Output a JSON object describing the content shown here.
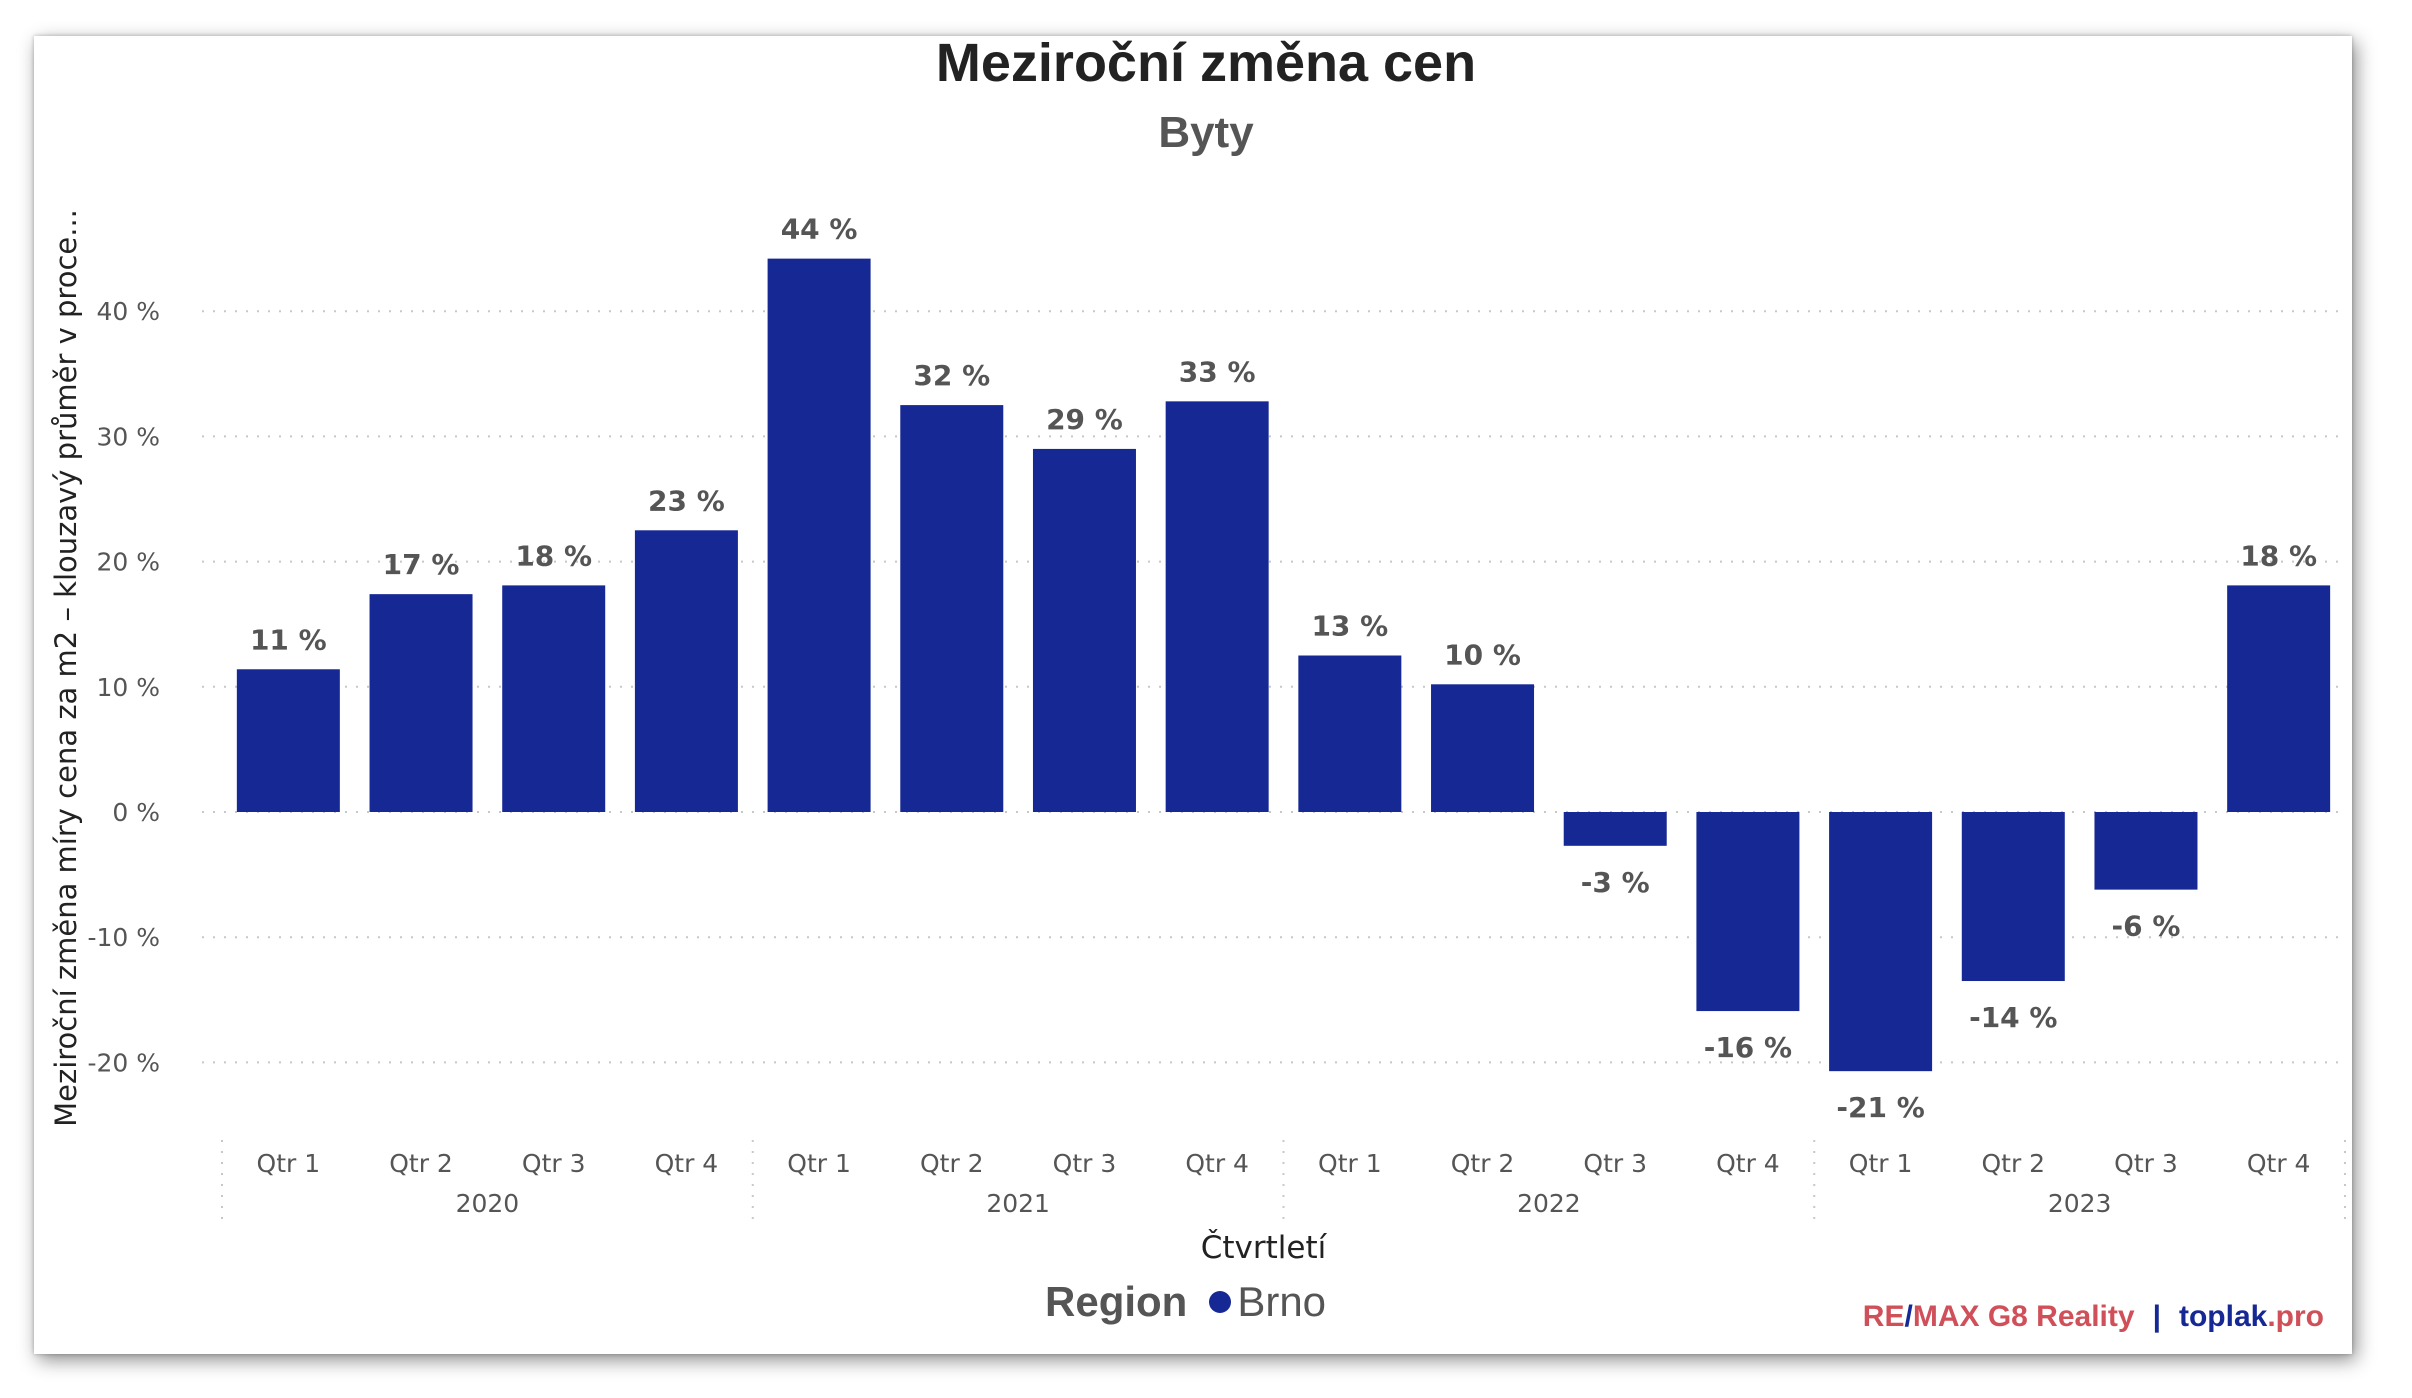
{
  "title": "Meziroční změna cen",
  "subtitle": "Byty",
  "colors": {
    "bar": "#162894",
    "text": "#555555",
    "title": "#222222",
    "credit_red": "#d0505a",
    "credit_blue": "#162894"
  },
  "legend": {
    "title": "Region",
    "items": [
      "Brno"
    ]
  },
  "credit": {
    "remax": "RE",
    "slash": "/",
    "remax2": "MAX G8 Reality",
    "sep": "|",
    "site1": "toplak",
    "site2": ".pro"
  },
  "chart_data": {
    "type": "bar",
    "title": "Meziroční změna cen",
    "subtitle": "Byty",
    "ylabel": "Meziroční změna míry cena za m2 – klouzavý průměr v proce...",
    "xlabel": "Čtvrtletí",
    "ylim": [
      -25,
      48
    ],
    "yticks": [
      -20,
      -10,
      0,
      10,
      20,
      30,
      40
    ],
    "ytick_labels": [
      "-20 %",
      "-10 %",
      "0 %",
      "10 %",
      "20 %",
      "30 %",
      "40 %"
    ],
    "categories": [
      "Qtr 1",
      "Qtr 2",
      "Qtr 3",
      "Qtr 4",
      "Qtr 1",
      "Qtr 2",
      "Qtr 3",
      "Qtr 4",
      "Qtr 1",
      "Qtr 2",
      "Qtr 3",
      "Qtr 4",
      "Qtr 1",
      "Qtr 2",
      "Qtr 3",
      "Qtr 4"
    ],
    "years": [
      "2020",
      "2021",
      "2022",
      "2023"
    ],
    "series": [
      {
        "name": "Brno",
        "values": [
          11.4,
          17.4,
          18.1,
          22.5,
          44.2,
          32.5,
          29.0,
          32.8,
          12.5,
          10.2,
          -2.7,
          -15.9,
          -20.7,
          -13.5,
          -6.2,
          18.1
        ],
        "labels": [
          "11 %",
          "17 %",
          "18 %",
          "23 %",
          "44 %",
          "32 %",
          "29 %",
          "33 %",
          "13 %",
          "10 %",
          "-3 %",
          "-16 %",
          "-21 %",
          "-14 %",
          "-6 %",
          "18 %"
        ]
      }
    ],
    "grid": true,
    "legend": "bottom"
  }
}
